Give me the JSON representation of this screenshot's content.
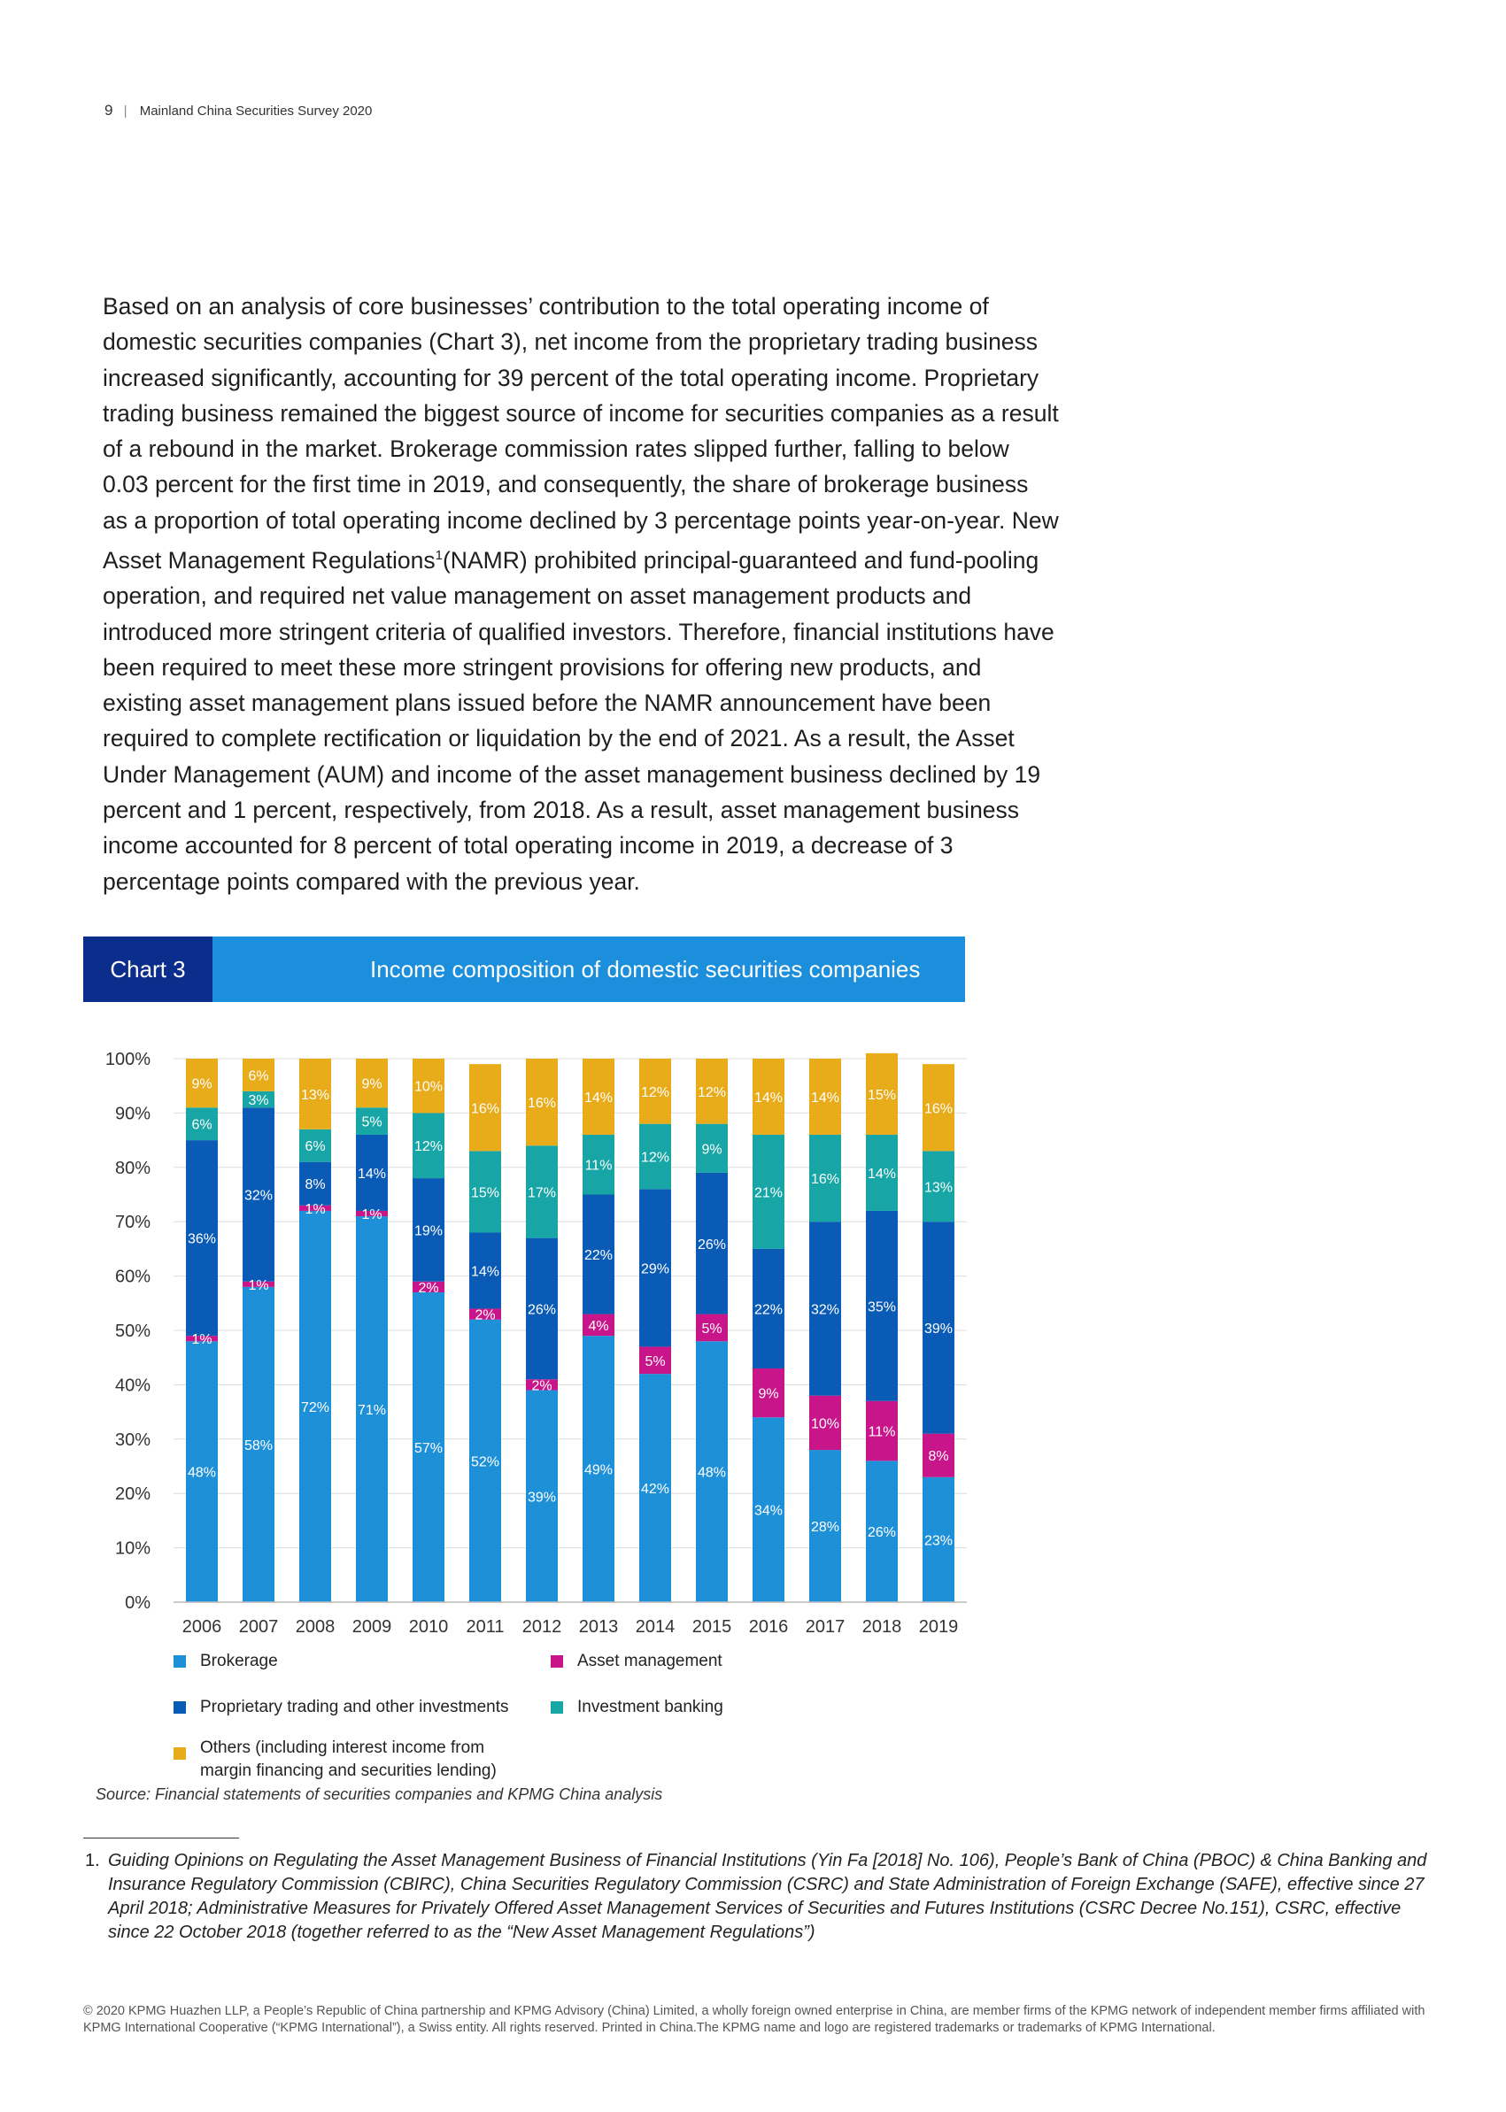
{
  "header": {
    "page_number": "9",
    "separator": "|",
    "publication": "Mainland China Securities Survey 2020"
  },
  "body": {
    "para_before_sup": "Based on an analysis of core businesses’ contribution to the total operating income of domestic securities companies (Chart 3), net income from the proprietary trading business increased significantly, accounting for 39 percent of the total operating income. Proprietary trading business remained the biggest source of income for securities companies as a result of a rebound in the market. Brokerage commission rates slipped further, falling to below 0.03 percent for the first time in 2019, and consequently, the share of brokerage business as a proportion of total operating income declined by 3 percentage points year-on-year. New Asset Management Regulations",
    "sup": "1",
    "para_after_sup": "(NAMR) prohibited principal-guaranteed and fund-pooling operation, and required net value management on asset management products and introduced more stringent criteria of qualified investors. Therefore, financial institutions have been required to meet these more stringent provisions for offering new products, and existing asset management plans issued before the NAMR announcement have been required to complete rectification or liquidation by the end of 2021. As a result, the Asset Under Management (AUM) and income of the asset management business declined by 19 percent and 1 percent, respectively, from 2018. As a result,  asset management business income accounted for 8 percent of total operating income in 2019, a decrease of 3 percentage points compared with the previous year."
  },
  "chart_banner": {
    "label": "Chart 3",
    "title": "Income composition of domestic securities companies"
  },
  "chart_data": {
    "type": "bar",
    "stacked": true,
    "categories": [
      "2006",
      "2007",
      "2008",
      "2009",
      "2010",
      "2011",
      "2012",
      "2013",
      "2014",
      "2015",
      "2016",
      "2017",
      "2018",
      "2019"
    ],
    "series": [
      {
        "name": "Brokerage",
        "color": "#1e90d8",
        "values": [
          48,
          58,
          72,
          71,
          57,
          52,
          39,
          49,
          42,
          48,
          34,
          28,
          26,
          23
        ]
      },
      {
        "name": "Asset management",
        "color": "#c8168a",
        "values": [
          1,
          1,
          1,
          1,
          2,
          2,
          2,
          4,
          5,
          5,
          9,
          10,
          11,
          8
        ]
      },
      {
        "name": "Proprietary trading and other investments",
        "color": "#0a5bb5",
        "values": [
          36,
          32,
          8,
          14,
          19,
          14,
          26,
          22,
          29,
          26,
          22,
          32,
          35,
          39
        ]
      },
      {
        "name": "Investment banking",
        "color": "#17a5a5",
        "values": [
          6,
          3,
          6,
          5,
          12,
          15,
          17,
          11,
          12,
          9,
          21,
          16,
          14,
          13
        ]
      },
      {
        "name": "Others (including interest income from margin financing and securities lending)",
        "color": "#e8ab1a",
        "values": [
          9,
          6,
          13,
          9,
          10,
          16,
          16,
          14,
          12,
          12,
          14,
          14,
          15,
          16
        ]
      }
    ],
    "y_tick_labels": [
      "0%",
      "10%",
      "20%",
      "30%",
      "40%",
      "50%",
      "60%",
      "70%",
      "80%",
      "90%",
      "100%"
    ],
    "ylim": [
      0,
      100
    ],
    "grid": true
  },
  "legend": {
    "brokerage": "Brokerage",
    "asset_management": "Asset management",
    "proprietary": "Proprietary trading and other investments",
    "investment_banking": "Investment banking",
    "others_line1": "Others (including interest income from",
    "others_line2": "margin financing and securities lending)"
  },
  "source": "Source: Financial statements of securities companies and KPMG China analysis",
  "footnote": {
    "number": "1.",
    "text": "Guiding Opinions on Regulating the Asset Management Business of Financial Institutions (Yin Fa [2018] No. 106), People’s Bank of China (PBOC) & China Banking and Insurance Regulatory Commission (CBIRC), China Securities Regulatory Commission (CSRC) and State Administration of Foreign Exchange (SAFE), effective since 27 April 2018; Administrative Measures for Privately Offered Asset Management Services of Securities and Futures Institutions (CSRC Decree No.151), CSRC, effective since 22 October 2018  (together referred to as the “New Asset Management Regulations”)"
  },
  "copyright": "© 2020 KPMG Huazhen LLP, a People’s Republic of China partnership and KPMG Advisory (China) Limited, a wholly foreign owned enterprise in China,  are member firms of the KPMG network of independent member firms affiliated with KPMG International Cooperative (“KPMG International”), a Swiss entity. All rights reserved. Printed in China.The KPMG name and logo are registered trademarks or trademarks of KPMG International."
}
